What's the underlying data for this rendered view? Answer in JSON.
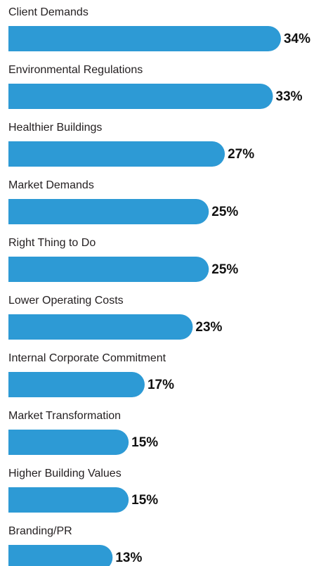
{
  "chart_data": {
    "type": "bar",
    "orientation": "horizontal",
    "color": "#2d9ad5",
    "categories": [
      "Client Demands",
      "Environmental Regulations",
      "Healthier Buildings",
      "Market Demands",
      "Right Thing to Do",
      "Lower Operating Costs",
      "Internal Corporate Commitment",
      "Market Transformation",
      "Higher Building Values",
      "Branding/PR"
    ],
    "values": [
      34,
      33,
      27,
      25,
      25,
      23,
      17,
      15,
      15,
      13
    ],
    "value_labels": [
      "34%",
      "33%",
      "27%",
      "25%",
      "25%",
      "23%",
      "17%",
      "15%",
      "15%",
      "13%"
    ]
  }
}
